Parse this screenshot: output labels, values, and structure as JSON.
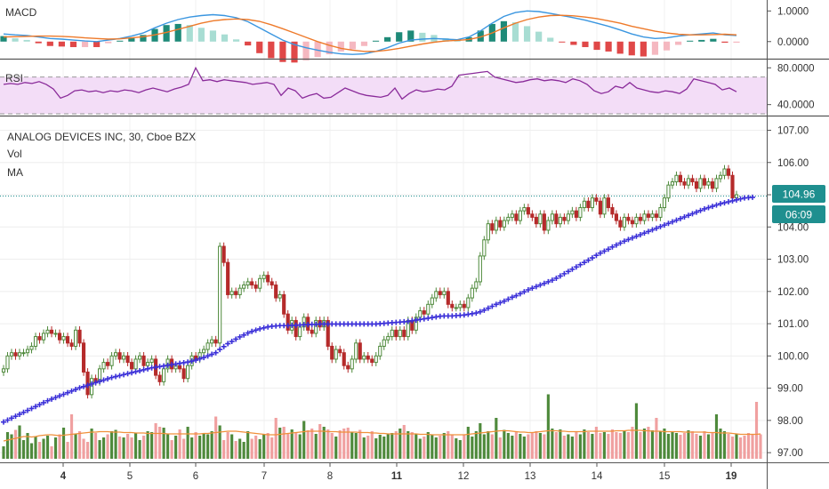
{
  "chart_data": {
    "type": "candlestick",
    "title": "ANALOG DEVICES INC, 30, Cboe BZX",
    "overlay_labels": [
      "Vol",
      "MA"
    ],
    "colors": {
      "up": "#4f8a3c",
      "down": "#b52a2a",
      "up_volume": "#4f8a3c",
      "down_volume": "#f0a0a0",
      "ma": "#3a2fd8",
      "volume_ma": "#f0903a",
      "last_price": "#1f8f8f",
      "macd_line": "#3a96e0",
      "signal_line": "#ee7a2a",
      "rsi_line": "#8a2b9a",
      "rsi_band": "#f3ddf7"
    },
    "price_axis": {
      "ylim": [
        96.7,
        107.4
      ],
      "ticks": [
        "107.00",
        "106.00",
        "105.00",
        "104.00",
        "103.00",
        "102.00",
        "101.00",
        "100.00",
        "99.00",
        "98.00",
        "97.00"
      ]
    },
    "dates": [
      "4",
      "5",
      "6",
      "7",
      "8",
      "11",
      "12",
      "13",
      "14",
      "15",
      "19"
    ],
    "last_price": "104.96",
    "countdown": "06:09",
    "price_close": [
      99.6,
      100.0,
      100.1,
      100.0,
      100.1,
      100.1,
      100.2,
      100.3,
      100.6,
      100.5,
      100.7,
      100.8,
      100.7,
      100.7,
      100.5,
      100.6,
      100.4,
      100.3,
      100.8,
      100.4,
      99.5,
      98.8,
      99.3,
      99.2,
      99.6,
      99.8,
      99.7,
      100.0,
      100.1,
      99.9,
      100.0,
      99.8,
      99.6,
      99.9,
      100.0,
      99.7,
      99.8,
      99.9,
      99.4,
      99.2,
      99.6,
      99.9,
      99.6,
      99.7,
      99.6,
      99.3,
      99.7,
      100.0,
      99.9,
      100.1,
      100.2,
      100.4,
      100.5,
      100.4,
      103.4,
      102.9,
      101.9,
      102.0,
      101.9,
      102.1,
      102.2,
      102.3,
      102.2,
      102.1,
      102.4,
      102.5,
      102.3,
      102.2,
      101.8,
      101.9,
      101.3,
      100.8,
      101.1,
      100.6,
      100.9,
      101.2,
      100.8,
      100.7,
      101.1,
      100.9,
      101.1,
      100.3,
      99.9,
      100.2,
      100.1,
      99.7,
      99.6,
      99.9,
      100.4,
      99.9,
      100.0,
      99.9,
      99.8,
      100.0,
      100.3,
      100.5,
      100.6,
      100.8,
      100.6,
      100.8,
      100.6,
      101.1,
      100.8,
      101.2,
      101.4,
      101.3,
      101.6,
      101.8,
      102.0,
      101.9,
      102.0,
      101.6,
      101.5,
      101.5,
      101.6,
      101.5,
      101.8,
      102.1,
      102.3,
      103.1,
      103.6,
      104.1,
      103.9,
      104.2,
      104.0,
      104.2,
      104.3,
      104.4,
      104.2,
      104.5,
      104.6,
      104.4,
      104.3,
      104.1,
      104.4,
      103.9,
      104.2,
      104.4,
      104.1,
      104.3,
      104.2,
      104.4,
      104.5,
      104.3,
      104.6,
      104.8,
      104.6,
      104.9,
      104.8,
      104.4,
      104.9,
      104.6,
      104.4,
      104.2,
      104.0,
      104.3,
      104.2,
      104.1,
      104.3,
      104.2,
      104.4,
      104.3,
      104.4,
      104.3,
      104.6,
      104.9,
      105.3,
      105.4,
      105.6,
      105.4,
      105.3,
      105.5,
      105.4,
      105.2,
      105.5,
      105.3,
      105.4,
      105.2,
      105.5,
      105.6,
      105.8,
      105.6,
      104.9,
      105.0
    ],
    "price_ma": [
      97.95,
      98.01,
      98.07,
      98.13,
      98.19,
      98.25,
      98.31,
      98.37,
      98.43,
      98.49,
      98.55,
      98.61,
      98.66,
      98.71,
      98.76,
      98.81,
      98.86,
      98.91,
      98.96,
      99.01,
      99.05,
      99.09,
      99.13,
      99.17,
      99.21,
      99.25,
      99.29,
      99.33,
      99.36,
      99.39,
      99.42,
      99.45,
      99.48,
      99.51,
      99.54,
      99.57,
      99.6,
      99.63,
      99.65,
      99.67,
      99.69,
      99.71,
      99.73,
      99.75,
      99.77,
      99.79,
      99.81,
      99.84,
      99.87,
      99.91,
      99.95,
      100.0,
      100.05,
      100.1,
      100.2,
      100.29,
      100.38,
      100.45,
      100.52,
      100.59,
      100.65,
      100.71,
      100.76,
      100.8,
      100.84,
      100.87,
      100.9,
      100.92,
      100.93,
      100.94,
      100.94,
      100.94,
      100.95,
      100.95,
      100.96,
      100.97,
      100.97,
      100.98,
      100.98,
      100.99,
      100.99,
      100.99,
      100.99,
      100.99,
      100.99,
      100.99,
      100.99,
      100.99,
      100.99,
      100.99,
      100.99,
      100.99,
      100.99,
      100.99,
      101.0,
      101.01,
      101.02,
      101.03,
      101.04,
      101.05,
      101.06,
      101.07,
      101.09,
      101.11,
      101.13,
      101.15,
      101.17,
      101.19,
      101.21,
      101.23,
      101.24,
      101.24,
      101.24,
      101.25,
      101.26,
      101.27,
      101.29,
      101.31,
      101.33,
      101.37,
      101.42,
      101.48,
      101.54,
      101.6,
      101.65,
      101.7,
      101.76,
      101.82,
      101.87,
      101.93,
      101.99,
      102.05,
      102.1,
      102.15,
      102.2,
      102.25,
      102.3,
      102.35,
      102.41,
      102.48,
      102.55,
      102.62,
      102.69,
      102.76,
      102.83,
      102.9,
      102.97,
      103.04,
      103.12,
      103.19,
      103.25,
      103.31,
      103.38,
      103.44,
      103.5,
      103.56,
      103.61,
      103.66,
      103.71,
      103.76,
      103.81,
      103.86,
      103.91,
      103.96,
      104.01,
      104.06,
      104.11,
      104.16,
      104.21,
      104.26,
      104.31,
      104.36,
      104.41,
      104.46,
      104.51,
      104.56,
      104.6,
      104.64,
      104.68,
      104.72,
      104.75,
      104.78,
      104.81,
      104.84,
      104.87,
      104.9,
      104.91,
      104.92
    ],
    "volume": [
      0.28,
      0.6,
      0.55,
      0.65,
      0.75,
      0.42,
      0.58,
      0.35,
      0.5,
      0.38,
      0.45,
      0.52,
      0.28,
      0.48,
      0.55,
      0.7,
      0.38,
      1.0,
      0.55,
      0.62,
      0.45,
      0.38,
      0.68,
      0.58,
      0.42,
      0.48,
      0.55,
      0.62,
      0.65,
      0.5,
      0.48,
      0.56,
      0.48,
      0.58,
      0.42,
      0.52,
      0.62,
      0.6,
      0.8,
      0.72,
      0.7,
      0.55,
      0.42,
      0.52,
      0.66,
      0.45,
      0.72,
      0.48,
      0.6,
      0.52,
      0.58,
      0.55,
      0.62,
      0.95,
      0.75,
      0.42,
      0.6,
      0.55,
      0.4,
      0.45,
      0.38,
      0.62,
      0.45,
      0.52,
      0.44,
      0.55,
      0.58,
      0.48,
      0.92,
      0.7,
      0.72,
      0.58,
      0.66,
      0.6,
      0.55,
      0.85,
      0.64,
      0.68,
      0.56,
      0.78,
      0.72,
      0.66,
      0.58,
      0.5,
      0.64,
      0.68,
      0.7,
      0.6,
      0.58,
      0.65,
      0.48,
      0.52,
      0.62,
      0.46,
      0.54,
      0.5,
      0.55,
      0.58,
      0.62,
      0.68,
      0.76,
      0.62,
      0.6,
      0.55,
      0.45,
      0.5,
      0.6,
      0.55,
      0.48,
      0.52,
      0.58,
      0.62,
      0.54,
      0.46,
      0.42,
      0.55,
      0.72,
      0.5,
      0.62,
      0.8,
      0.55,
      0.62,
      0.55,
      0.92,
      0.48,
      0.65,
      0.58,
      0.52,
      0.6,
      0.56,
      0.5,
      0.55,
      0.58,
      0.62,
      0.58,
      0.55,
      1.45,
      0.68,
      0.6,
      0.66,
      0.52,
      0.55,
      0.5,
      0.62,
      0.55,
      0.66,
      0.6,
      0.56,
      0.72,
      0.58,
      0.6,
      0.56,
      0.66,
      0.6,
      0.58,
      0.62,
      0.6,
      0.72,
      1.25,
      0.6,
      0.68,
      0.72,
      0.64,
      0.92,
      0.62,
      0.68,
      0.56,
      0.6,
      0.58,
      0.54,
      0.58,
      0.64,
      0.62,
      0.56,
      0.52,
      0.62,
      0.55,
      0.58,
      1.0,
      0.68,
      0.62,
      0.56,
      0.5,
      0.55,
      0.48,
      0.52,
      0.58,
      0.55,
      1.28,
      0.55
    ],
    "volume_ma": [
      0.4,
      0.42,
      0.44,
      0.46,
      0.48,
      0.5,
      0.5,
      0.49,
      0.5,
      0.52,
      0.53,
      0.54,
      0.54,
      0.53,
      0.52,
      0.53,
      0.54,
      0.55,
      0.56,
      0.57,
      0.58,
      0.59,
      0.6,
      0.6,
      0.61,
      0.61,
      0.61,
      0.6,
      0.6,
      0.6,
      0.59,
      0.59,
      0.59,
      0.58,
      0.58,
      0.58,
      0.57,
      0.57,
      0.57,
      0.57,
      0.57,
      0.56,
      0.56,
      0.56,
      0.56,
      0.56,
      0.56,
      0.56,
      0.56,
      0.56,
      0.57,
      0.57,
      0.58,
      0.59,
      0.6,
      0.61,
      0.62,
      0.62,
      0.62,
      0.61,
      0.6,
      0.59,
      0.58,
      0.57,
      0.56,
      0.55,
      0.54,
      0.54,
      0.54,
      0.55,
      0.56,
      0.57,
      0.58,
      0.59,
      0.6,
      0.61,
      0.62,
      0.62,
      0.62,
      0.62,
      0.62,
      0.61,
      0.61,
      0.61,
      0.6,
      0.6,
      0.6,
      0.6,
      0.6,
      0.59,
      0.59,
      0.59,
      0.58,
      0.58,
      0.57,
      0.57,
      0.56,
      0.56,
      0.56,
      0.56,
      0.56,
      0.56,
      0.56,
      0.56,
      0.55,
      0.55,
      0.55,
      0.54,
      0.54,
      0.54,
      0.54,
      0.54,
      0.54,
      0.54,
      0.54,
      0.54,
      0.55,
      0.56,
      0.57,
      0.58,
      0.59,
      0.6,
      0.61,
      0.62,
      0.63,
      0.63,
      0.63,
      0.62,
      0.61,
      0.6,
      0.6,
      0.59,
      0.59,
      0.6,
      0.61,
      0.62,
      0.63,
      0.63,
      0.63,
      0.62,
      0.62,
      0.61,
      0.61,
      0.61,
      0.61,
      0.61,
      0.62,
      0.62,
      0.62,
      0.62,
      0.62,
      0.62,
      0.62,
      0.63,
      0.63,
      0.63,
      0.64,
      0.64,
      0.64,
      0.64,
      0.63,
      0.63,
      0.62,
      0.62,
      0.62,
      0.61,
      0.61,
      0.61,
      0.61,
      0.61,
      0.6,
      0.6,
      0.6,
      0.6,
      0.6,
      0.6,
      0.59,
      0.59,
      0.59,
      0.58,
      0.58,
      0.58,
      0.57,
      0.56,
      0.55,
      0.55,
      0.55,
      0.55,
      0.55,
      0.56
    ],
    "macd": {
      "label": "MACD",
      "ylim": [
        -0.5,
        1.3
      ],
      "ticks": [
        "1.0000",
        "0.0000"
      ],
      "macd_line": [
        0.25,
        0.22,
        0.2,
        0.15,
        0.1,
        0.08,
        0.05,
        0.02,
        0.0,
        0.05,
        0.1,
        0.18,
        0.28,
        0.45,
        0.6,
        0.72,
        0.8,
        0.85,
        0.88,
        0.85,
        0.78,
        0.65,
        0.45,
        0.25,
        0.05,
        -0.1,
        -0.2,
        -0.28,
        -0.35,
        -0.4,
        -0.42,
        -0.4,
        -0.32,
        -0.2,
        -0.05,
        0.05,
        0.08,
        0.1,
        0.08,
        0.06,
        0.15,
        0.35,
        0.6,
        0.82,
        0.95,
        1.0,
        0.98,
        0.92,
        0.85,
        0.78,
        0.7,
        0.6,
        0.5,
        0.38,
        0.25,
        0.15,
        0.1,
        0.12,
        0.18,
        0.22,
        0.25,
        0.28,
        0.22,
        0.2
      ],
      "signal_line": [
        0.15,
        0.16,
        0.17,
        0.18,
        0.18,
        0.17,
        0.15,
        0.12,
        0.1,
        0.08,
        0.09,
        0.12,
        0.16,
        0.22,
        0.3,
        0.4,
        0.5,
        0.6,
        0.68,
        0.72,
        0.74,
        0.72,
        0.66,
        0.55,
        0.42,
        0.28,
        0.14,
        0.0,
        -0.12,
        -0.22,
        -0.28,
        -0.32,
        -0.32,
        -0.28,
        -0.22,
        -0.15,
        -0.08,
        -0.02,
        0.02,
        0.04,
        0.07,
        0.15,
        0.28,
        0.45,
        0.6,
        0.72,
        0.8,
        0.85,
        0.86,
        0.84,
        0.8,
        0.75,
        0.68,
        0.6,
        0.5,
        0.42,
        0.34,
        0.28,
        0.24,
        0.22,
        0.22,
        0.23,
        0.24,
        0.22
      ]
    },
    "rsi": {
      "label": "RSI",
      "ylim": [
        30,
        88
      ],
      "ticks": [
        "80.0000",
        "40.0000"
      ],
      "band": [
        70,
        30
      ],
      "values": [
        62,
        63,
        62,
        64,
        63,
        65,
        62,
        57,
        47,
        50,
        55,
        56,
        54,
        55,
        53,
        55,
        54,
        56,
        55,
        53,
        56,
        58,
        56,
        54,
        57,
        59,
        62,
        80,
        66,
        67,
        65,
        67,
        66,
        65,
        64,
        62,
        63,
        64,
        62,
        50,
        58,
        55,
        47,
        50,
        52,
        47,
        48,
        53,
        58,
        55,
        52,
        50,
        49,
        48,
        50,
        58,
        46,
        52,
        56,
        54,
        55,
        57,
        56,
        60,
        72,
        73,
        74,
        75,
        76,
        70,
        68,
        66,
        64,
        65,
        67,
        68,
        66,
        67,
        66,
        64,
        68,
        66,
        62,
        55,
        52,
        54,
        60,
        58,
        64,
        58,
        56,
        54,
        53,
        55,
        54,
        52,
        57,
        68,
        66,
        64,
        62,
        56,
        58,
        54
      ]
    }
  }
}
